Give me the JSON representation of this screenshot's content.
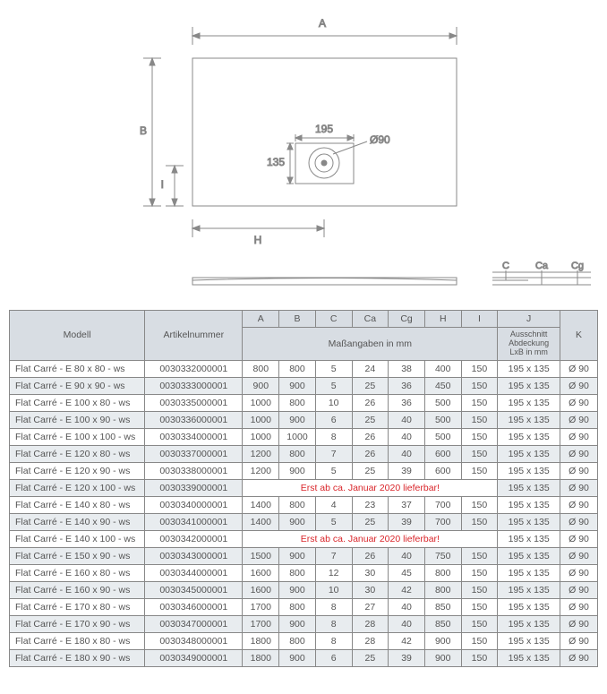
{
  "diagram": {
    "labels": {
      "A": "A",
      "B": "B",
      "I": "I",
      "H": "H",
      "C": "C",
      "Ca": "Ca",
      "Cg": "Cg"
    },
    "cover_w": "195",
    "cover_h": "135",
    "drain_d": "Ø90",
    "stroke": "#888888",
    "text_color": "#555555"
  },
  "table": {
    "headers": {
      "model": "Modell",
      "art": "Artikelnummer",
      "A": "A",
      "B": "B",
      "C": "C",
      "Ca": "Ca",
      "Cg": "Cg",
      "H": "H",
      "I": "I",
      "J": "J",
      "K": "K",
      "mass": "Maßangaben in mm",
      "J_sub1": "Ausschnitt",
      "J_sub2": "Abdeckung",
      "J_sub3": "LxB in mm"
    },
    "note": "Erst ab ca. Januar 2020 lieferbar!",
    "rows": [
      {
        "model": "Flat Carré - E  80 x   80 - ws",
        "art": "0030332000001",
        "A": "800",
        "B": "800",
        "C": "5",
        "Ca": "24",
        "Cg": "38",
        "H": "400",
        "I": "150",
        "J": "195 x 135",
        "K": "Ø 90",
        "stripe": false
      },
      {
        "model": "Flat Carré - E  90 x   90 - ws",
        "art": "0030333000001",
        "A": "900",
        "B": "900",
        "C": "5",
        "Ca": "25",
        "Cg": "36",
        "H": "450",
        "I": "150",
        "J": "195 x 135",
        "K": "Ø 90",
        "stripe": true
      },
      {
        "model": "Flat Carré - E 100 x   80 - ws",
        "art": "0030335000001",
        "A": "1000",
        "B": "800",
        "C": "10",
        "Ca": "26",
        "Cg": "36",
        "H": "500",
        "I": "150",
        "J": "195 x 135",
        "K": "Ø 90",
        "stripe": false
      },
      {
        "model": "Flat Carré - E 100 x   90 - ws",
        "art": "0030336000001",
        "A": "1000",
        "B": "900",
        "C": "6",
        "Ca": "25",
        "Cg": "40",
        "H": "500",
        "I": "150",
        "J": "195 x 135",
        "K": "Ø 90",
        "stripe": true
      },
      {
        "model": "Flat Carré - E 100 x 100 - ws",
        "art": "0030334000001",
        "A": "1000",
        "B": "1000",
        "C": "8",
        "Ca": "26",
        "Cg": "40",
        "H": "500",
        "I": "150",
        "J": "195 x 135",
        "K": "Ø 90",
        "stripe": false
      },
      {
        "model": "Flat Carré - E 120 x   80 - ws",
        "art": "0030337000001",
        "A": "1200",
        "B": "800",
        "C": "7",
        "Ca": "26",
        "Cg": "40",
        "H": "600",
        "I": "150",
        "J": "195 x 135",
        "K": "Ø 90",
        "stripe": true
      },
      {
        "model": "Flat Carré - E 120 x   90 - ws",
        "art": "0030338000001",
        "A": "1200",
        "B": "900",
        "C": "5",
        "Ca": "25",
        "Cg": "39",
        "H": "600",
        "I": "150",
        "J": "195 x 135",
        "K": "Ø 90",
        "stripe": false
      },
      {
        "model": "Flat Carré - E 120 x 100 - ws",
        "art": "0030339000001",
        "note": true,
        "J": "195 x 135",
        "K": "Ø 90",
        "stripe": true
      },
      {
        "model": "Flat Carré - E 140 x   80 - ws",
        "art": "0030340000001",
        "A": "1400",
        "B": "800",
        "C": "4",
        "Ca": "23",
        "Cg": "37",
        "H": "700",
        "I": "150",
        "J": "195 x 135",
        "K": "Ø 90",
        "stripe": false
      },
      {
        "model": "Flat Carré - E 140 x   90 - ws",
        "art": "0030341000001",
        "A": "1400",
        "B": "900",
        "C": "5",
        "Ca": "25",
        "Cg": "39",
        "H": "700",
        "I": "150",
        "J": "195 x 135",
        "K": "Ø 90",
        "stripe": true
      },
      {
        "model": "Flat Carré - E 140 x 100 - ws",
        "art": "0030342000001",
        "note": true,
        "J": "195 x 135",
        "K": "Ø 90",
        "stripe": false
      },
      {
        "model": "Flat Carré - E 150 x   90 - ws",
        "art": "0030343000001",
        "A": "1500",
        "B": "900",
        "C": "7",
        "Ca": "26",
        "Cg": "40",
        "H": "750",
        "I": "150",
        "J": "195 x 135",
        "K": "Ø 90",
        "stripe": true
      },
      {
        "model": "Flat Carré - E 160 x   80 - ws",
        "art": "0030344000001",
        "A": "1600",
        "B": "800",
        "C": "12",
        "Ca": "30",
        "Cg": "45",
        "H": "800",
        "I": "150",
        "J": "195 x 135",
        "K": "Ø 90",
        "stripe": false
      },
      {
        "model": "Flat Carré - E 160 x   90 - ws",
        "art": "0030345000001",
        "A": "1600",
        "B": "900",
        "C": "10",
        "Ca": "30",
        "Cg": "42",
        "H": "800",
        "I": "150",
        "J": "195 x 135",
        "K": "Ø 90",
        "stripe": true
      },
      {
        "model": "Flat Carré - E 170 x   80 - ws",
        "art": "0030346000001",
        "A": "1700",
        "B": "800",
        "C": "8",
        "Ca": "27",
        "Cg": "40",
        "H": "850",
        "I": "150",
        "J": "195 x 135",
        "K": "Ø 90",
        "stripe": false
      },
      {
        "model": "Flat Carré - E 170 x   90 - ws",
        "art": "0030347000001",
        "A": "1700",
        "B": "900",
        "C": "8",
        "Ca": "28",
        "Cg": "40",
        "H": "850",
        "I": "150",
        "J": "195 x 135",
        "K": "Ø 90",
        "stripe": true
      },
      {
        "model": "Flat Carré - E 180 x   80 - ws",
        "art": "0030348000001",
        "A": "1800",
        "B": "800",
        "C": "8",
        "Ca": "28",
        "Cg": "42",
        "H": "900",
        "I": "150",
        "J": "195 x 135",
        "K": "Ø 90",
        "stripe": false
      },
      {
        "model": "Flat Carré - E 180 x   90 - ws",
        "art": "0030349000001",
        "A": "1800",
        "B": "900",
        "C": "6",
        "Ca": "25",
        "Cg": "39",
        "H": "900",
        "I": "150",
        "J": "195 x 135",
        "K": "Ø 90",
        "stripe": true
      }
    ]
  }
}
